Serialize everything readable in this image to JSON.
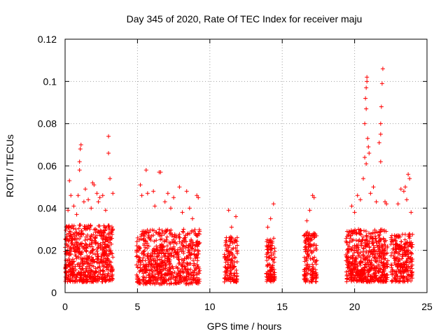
{
  "chart_data": {
    "type": "scatter",
    "title": "Day 345 of 2020, Rate Of TEC Index for receiver maju",
    "xlabel": "GPS time / hours",
    "ylabel": "ROTI / TECUs",
    "xlim": [
      0,
      25
    ],
    "ylim": [
      0,
      0.12
    ],
    "x_ticks": [
      0,
      5,
      10,
      15,
      20,
      25
    ],
    "x_tick_labels": [
      "0",
      "5",
      "10",
      "15",
      "20",
      "25"
    ],
    "y_ticks": [
      0,
      0.02,
      0.04,
      0.06,
      0.08,
      0.1,
      0.12
    ],
    "y_tick_labels": [
      "0",
      "0.02",
      "0.04",
      "0.06",
      "0.08",
      "0.1",
      "0.12"
    ],
    "grid": true,
    "marker": "plus",
    "color": "#ff0000",
    "series": [
      {
        "name": "ROTI",
        "clusters": [
          {
            "x_range": [
              0.0,
              3.3
            ],
            "y_base_range": [
              0.005,
              0.032
            ],
            "density": 650
          },
          {
            "x_range": [
              4.9,
              9.3
            ],
            "y_base_range": [
              0.004,
              0.03
            ],
            "density": 700
          },
          {
            "x_range": [
              11.0,
              11.9
            ],
            "y_base_range": [
              0.005,
              0.027
            ],
            "density": 140
          },
          {
            "x_range": [
              13.9,
              14.5
            ],
            "y_base_range": [
              0.005,
              0.026
            ],
            "density": 110
          },
          {
            "x_range": [
              16.5,
              17.4
            ],
            "y_base_range": [
              0.005,
              0.029
            ],
            "density": 150
          },
          {
            "x_range": [
              19.4,
              22.3
            ],
            "y_base_range": [
              0.005,
              0.03
            ],
            "density": 560
          },
          {
            "x_range": [
              22.5,
              24.0
            ],
            "y_base_range": [
              0.005,
              0.028
            ],
            "density": 260
          }
        ],
        "points": [
          [
            0.3,
            0.053
          ],
          [
            0.4,
            0.046
          ],
          [
            0.6,
            0.041
          ],
          [
            0.9,
            0.046
          ],
          [
            1.0,
            0.058
          ],
          [
            1.05,
            0.068
          ],
          [
            1.1,
            0.07
          ],
          [
            1.0,
            0.062
          ],
          [
            1.4,
            0.049
          ],
          [
            1.6,
            0.044
          ],
          [
            1.9,
            0.052
          ],
          [
            2.0,
            0.051
          ],
          [
            2.2,
            0.047
          ],
          [
            2.4,
            0.045
          ],
          [
            2.6,
            0.046
          ],
          [
            2.8,
            0.039
          ],
          [
            3.0,
            0.074
          ],
          [
            3.0,
            0.066
          ],
          [
            3.1,
            0.054
          ],
          [
            3.3,
            0.047
          ],
          [
            0.2,
            0.039
          ],
          [
            0.8,
            0.037
          ],
          [
            1.3,
            0.043
          ],
          [
            1.8,
            0.04
          ],
          [
            2.3,
            0.043
          ],
          [
            5.2,
            0.051
          ],
          [
            5.3,
            0.046
          ],
          [
            5.6,
            0.058
          ],
          [
            5.7,
            0.047
          ],
          [
            6.1,
            0.048
          ],
          [
            6.5,
            0.057
          ],
          [
            6.6,
            0.057
          ],
          [
            6.9,
            0.043
          ],
          [
            7.1,
            0.047
          ],
          [
            7.5,
            0.045
          ],
          [
            7.9,
            0.05
          ],
          [
            8.4,
            0.048
          ],
          [
            8.6,
            0.04
          ],
          [
            8.8,
            0.035
          ],
          [
            9.1,
            0.046
          ],
          [
            9.2,
            0.045
          ],
          [
            6.2,
            0.041
          ],
          [
            7.3,
            0.04
          ],
          [
            8.1,
            0.038
          ],
          [
            11.3,
            0.039
          ],
          [
            11.5,
            0.031
          ],
          [
            11.8,
            0.036
          ],
          [
            14.2,
            0.035
          ],
          [
            14.4,
            0.042
          ],
          [
            14.0,
            0.031
          ],
          [
            17.1,
            0.046
          ],
          [
            17.2,
            0.045
          ],
          [
            16.9,
            0.039
          ],
          [
            16.7,
            0.034
          ],
          [
            19.8,
            0.041
          ],
          [
            20.2,
            0.046
          ],
          [
            20.4,
            0.044
          ],
          [
            20.6,
            0.054
          ],
          [
            20.7,
            0.064
          ],
          [
            20.8,
            0.061
          ],
          [
            20.9,
            0.073
          ],
          [
            20.95,
            0.069
          ],
          [
            21.0,
            0.066
          ],
          [
            20.7,
            0.08
          ],
          [
            20.8,
            0.087
          ],
          [
            20.75,
            0.092
          ],
          [
            20.8,
            0.097
          ],
          [
            20.85,
            0.1
          ],
          [
            20.85,
            0.102
          ],
          [
            21.3,
            0.05
          ],
          [
            21.7,
            0.071
          ],
          [
            21.8,
            0.075
          ],
          [
            21.8,
            0.062
          ],
          [
            21.85,
            0.088
          ],
          [
            21.9,
            0.099
          ],
          [
            21.95,
            0.106
          ],
          [
            21.8,
            0.08
          ],
          [
            22.1,
            0.043
          ],
          [
            22.2,
            0.042
          ],
          [
            21.5,
            0.043
          ],
          [
            21.1,
            0.047
          ],
          [
            20.0,
            0.038
          ],
          [
            23.2,
            0.049
          ],
          [
            23.4,
            0.048
          ],
          [
            23.5,
            0.05
          ],
          [
            23.7,
            0.056
          ],
          [
            23.8,
            0.054
          ],
          [
            23.6,
            0.044
          ],
          [
            23.0,
            0.042
          ],
          [
            23.9,
            0.038
          ]
        ]
      }
    ]
  }
}
